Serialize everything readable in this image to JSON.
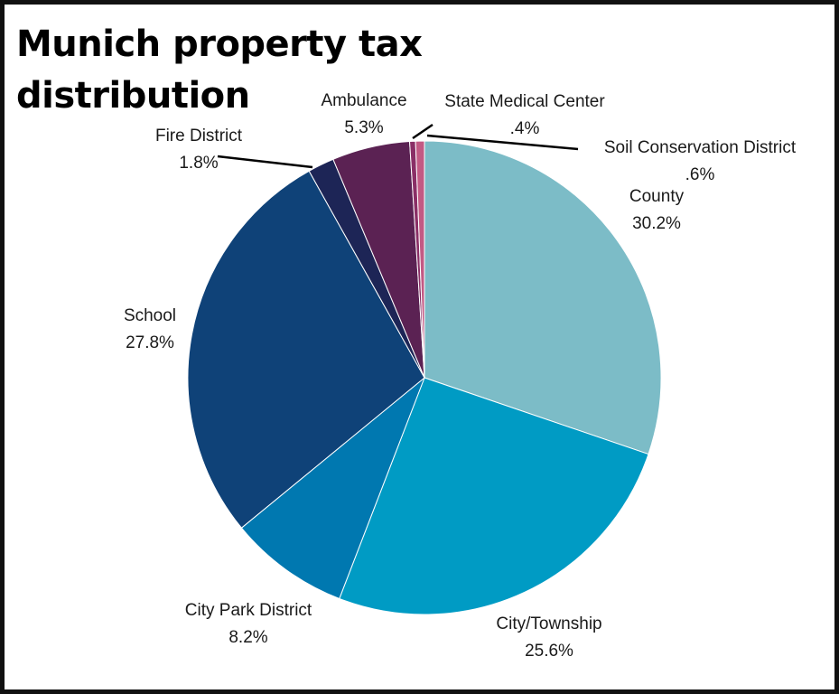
{
  "chart_data": {
    "type": "pie",
    "title": "Munich property tax distribution",
    "slices": [
      {
        "label": "County",
        "value": 30.2,
        "value_text": "30.2%",
        "color": "#7cbcc7"
      },
      {
        "label": "City/Township",
        "value": 25.6,
        "value_text": "25.6%",
        "color": "#009bc4"
      },
      {
        "label": "City Park District",
        "value": 8.2,
        "value_text": "8.2%",
        "color": "#0078b0"
      },
      {
        "label": "School",
        "value": 27.8,
        "value_text": "27.8%",
        "color": "#0f4278"
      },
      {
        "label": "Fire District",
        "value": 1.8,
        "value_text": "1.8%",
        "color": "#1d2556"
      },
      {
        "label": "Ambulance",
        "value": 5.3,
        "value_text": "5.3%",
        "color": "#5b2253"
      },
      {
        "label": "State Medical Center",
        "value": 0.4,
        "value_text": ".4%",
        "color": "#8a2f66"
      },
      {
        "label": "Soil Conservation District",
        "value": 0.6,
        "value_text": ".6%",
        "color": "#c25a84"
      }
    ]
  }
}
